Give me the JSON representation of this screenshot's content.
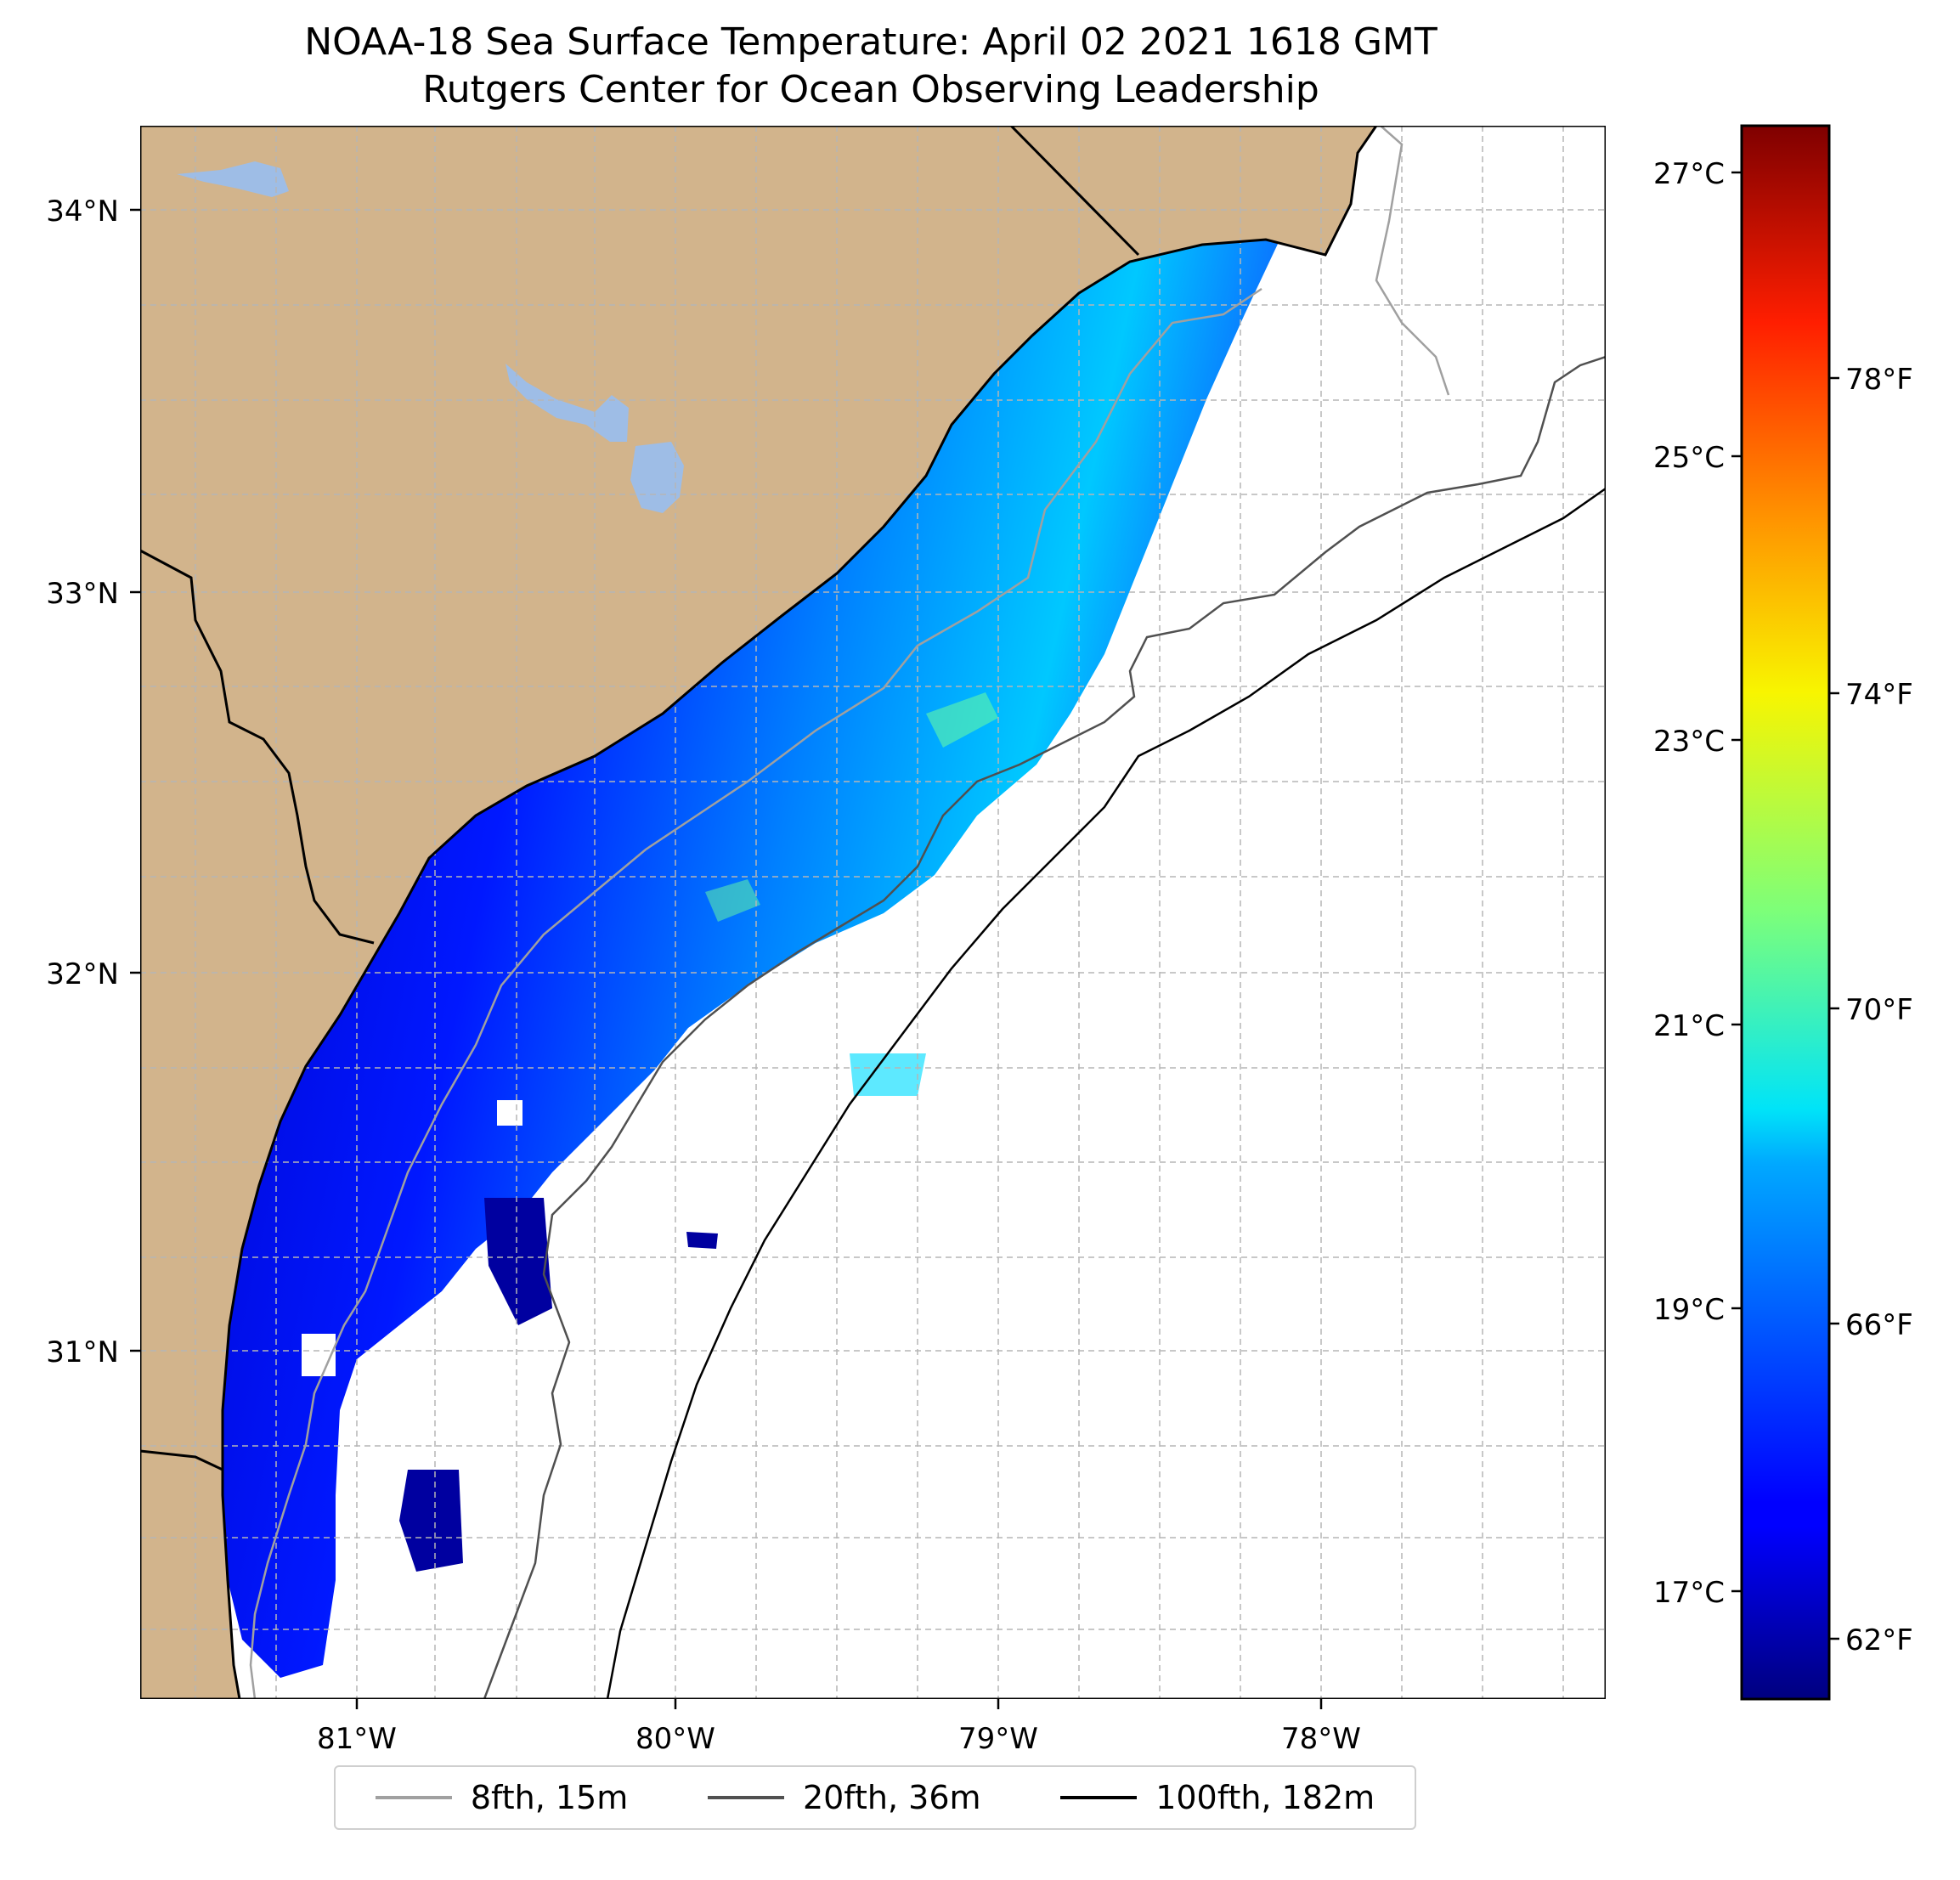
{
  "title": {
    "line1": "NOAA-18 Sea Surface Temperature: April 02 2021 1618 GMT",
    "line2": "Rutgers Center for Ocean Observing Leadership"
  },
  "map": {
    "lat_ticks": [
      "34°N",
      "33°N",
      "32°N",
      "31°N"
    ],
    "lon_ticks": [
      "81°W",
      "80°W",
      "79°W",
      "78°W"
    ],
    "colors": {
      "land": "#d2b48c",
      "lake": "#9ebde6",
      "grid": "#b5b5b5",
      "contour_8fth": "#a0a0a0",
      "contour_20fth": "#505050",
      "contour_100fth": "#000000"
    }
  },
  "colorbar": {
    "celsius_labels": [
      "27°C",
      "25°C",
      "23°C",
      "21°C",
      "19°C",
      "17°C"
    ],
    "fahrenheit_labels": [
      "78°F",
      "74°F",
      "70°F",
      "66°F",
      "62°F"
    ],
    "colormap": "jet",
    "range_c": [
      16.4,
      27.3
    ]
  },
  "legend": {
    "items": [
      {
        "label": "8fth, 15m",
        "color": "#a0a0a0"
      },
      {
        "label": "20fth, 36m",
        "color": "#505050"
      },
      {
        "label": "100fth, 182m",
        "color": "#000000"
      }
    ]
  }
}
